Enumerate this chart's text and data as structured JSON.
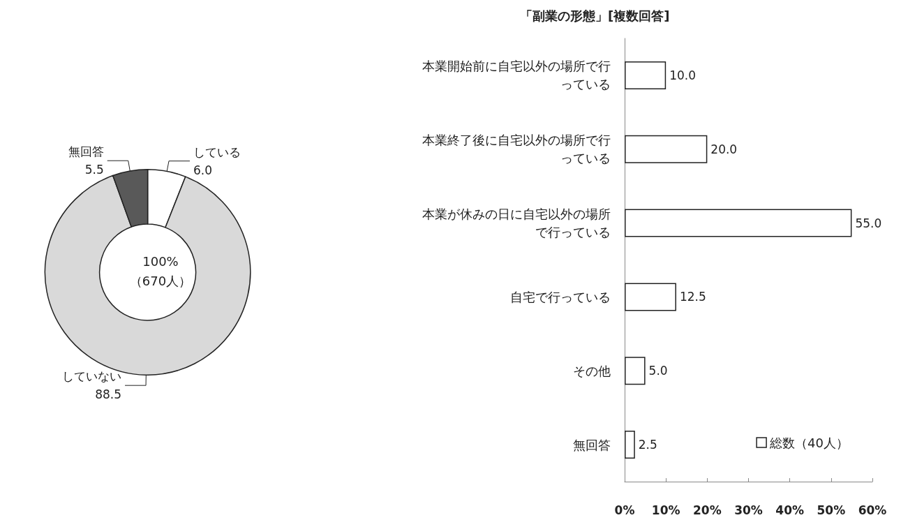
{
  "chart_data": [
    {
      "type": "donut",
      "categories": [
        "している",
        "していない",
        "無回答"
      ],
      "values": [
        6.0,
        88.5,
        5.5
      ],
      "value_labels": [
        "6.0",
        "88.5",
        "5.5"
      ],
      "colors": [
        "#ffffff",
        "#d9d9d9",
        "#595959"
      ],
      "annotations": [
        "100%\n（670人）"
      ],
      "legend": false
    },
    {
      "type": "bar",
      "orientation": "horizontal",
      "title": "「副業の形態」[複数回答]",
      "categories": [
        "本業開始前に自宅以外の場所で行っている",
        "本業終了後に自宅以外の場所で行っている",
        "本業が休みの日に自宅以外の場所で行っている",
        "自宅で行っている",
        "その他",
        "無回答"
      ],
      "series": [
        {
          "name": "総数（40人）",
          "color": "#ffffff",
          "values": [
            10.0,
            20.0,
            55.0,
            12.5,
            5.0,
            2.5
          ],
          "value_labels": [
            "10.0",
            "20.0",
            "55.0",
            "12.5",
            "5.0",
            "2.5"
          ]
        }
      ],
      "xlim": [
        0,
        60
      ],
      "xticks": [
        {
          "value": 0,
          "label": "0%"
        },
        {
          "value": 10,
          "label": "10%"
        },
        {
          "value": 20,
          "label": "20%"
        },
        {
          "value": 30,
          "label": "30%"
        },
        {
          "value": 40,
          "label": "40%"
        },
        {
          "value": 50,
          "label": "50%"
        },
        {
          "value": 60,
          "label": "60%"
        }
      ],
      "legend": "bottom right",
      "grid": false
    }
  ]
}
